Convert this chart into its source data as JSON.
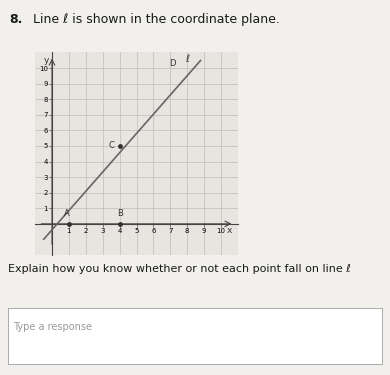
{
  "title_number": "8.",
  "title_text": "Line ℓ is shown in the coordinate plane.",
  "subtitle": "Explain how you know whether or not each point fall on line ℓ",
  "response_placeholder": "Type a response",
  "xlim": [
    -1,
    11
  ],
  "ylim": [
    -2,
    11
  ],
  "xticks": [
    1,
    2,
    3,
    4,
    5,
    6,
    7,
    8,
    9,
    10
  ],
  "yticks": [
    1,
    2,
    3,
    4,
    5,
    6,
    7,
    8,
    9,
    10
  ],
  "line_x": [
    -0.5,
    8.8
  ],
  "line_y": [
    -1.0,
    10.5
  ],
  "line_color": "#666666",
  "line_width": 1.2,
  "point_A": [
    1,
    0
  ],
  "point_B": [
    4,
    0
  ],
  "point_C": [
    4,
    5
  ],
  "point_D_x": 7.6,
  "point_D_y": 9.8,
  "label_A": "A",
  "label_B": "B",
  "label_C": "C",
  "label_D": "D",
  "label_line": "ℓ",
  "bg_color": "#f0eeeb",
  "plot_bg": "#e8e5e0",
  "grid_color": "#c0bab5",
  "axis_color": "#444444",
  "font_size_title": 9,
  "font_size_tick": 5,
  "font_size_points": 6,
  "font_size_subtitle": 8,
  "font_size_response": 7
}
